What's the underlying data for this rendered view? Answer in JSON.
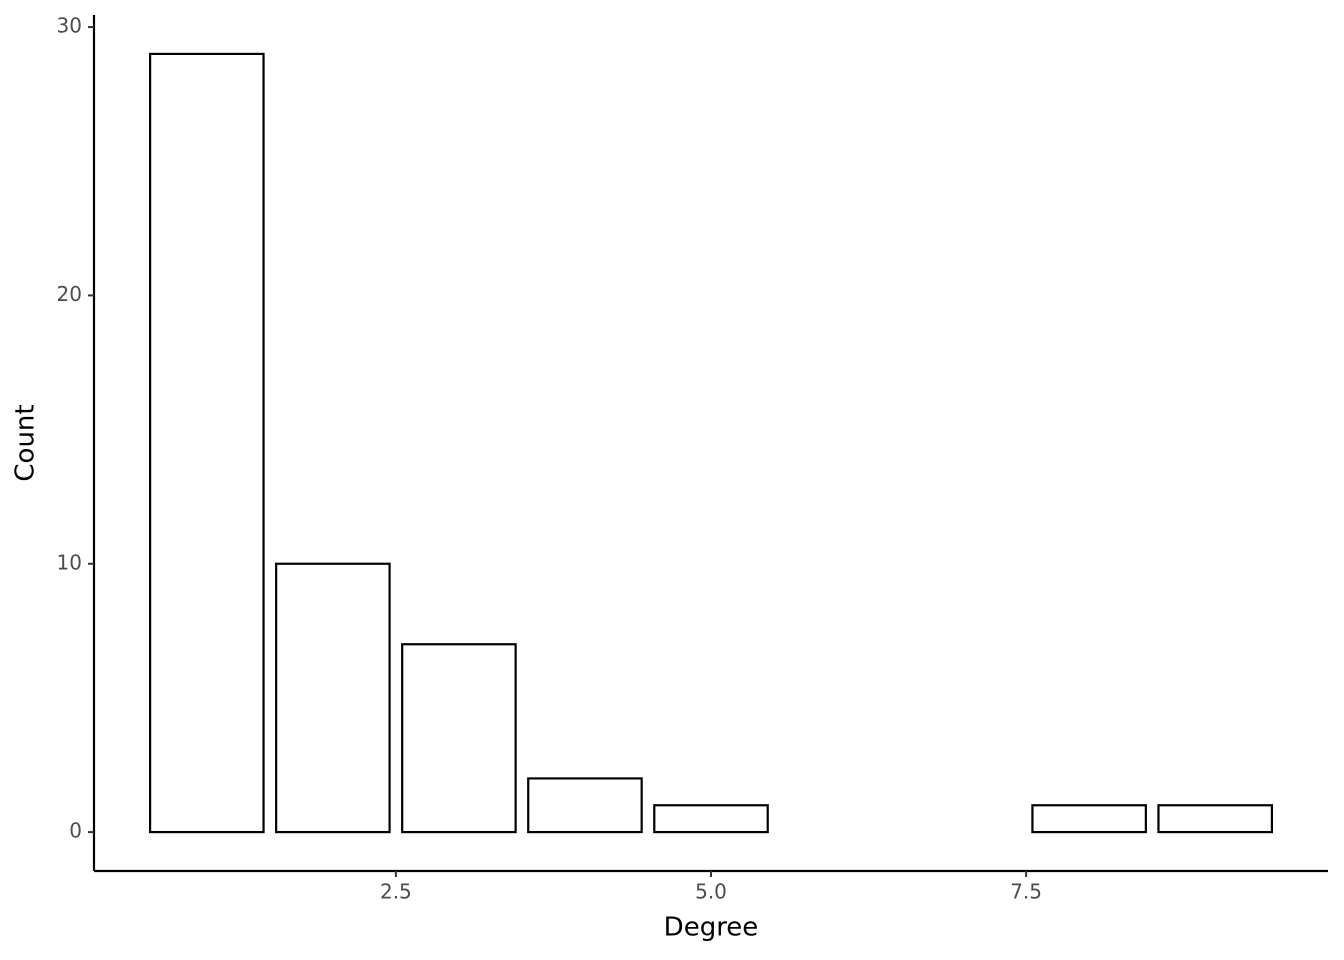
{
  "chart_data": {
    "type": "bar",
    "x": [
      1,
      2,
      3,
      4,
      5,
      8,
      9
    ],
    "values": [
      29,
      10,
      7,
      2,
      1,
      1,
      1
    ],
    "x_label": "Degree",
    "y_label": "Count",
    "xlim": [
      0.105,
      9.895
    ],
    "ylim": [
      -1.45,
      30.45
    ],
    "xticks": [
      2.5,
      {
        "value": 5,
        "label": "5.0"
      },
      7.5
    ],
    "yticks": [
      0,
      10,
      20,
      30
    ],
    "fill": "#ffffff",
    "edge_color": "#000000",
    "grid": false
  }
}
